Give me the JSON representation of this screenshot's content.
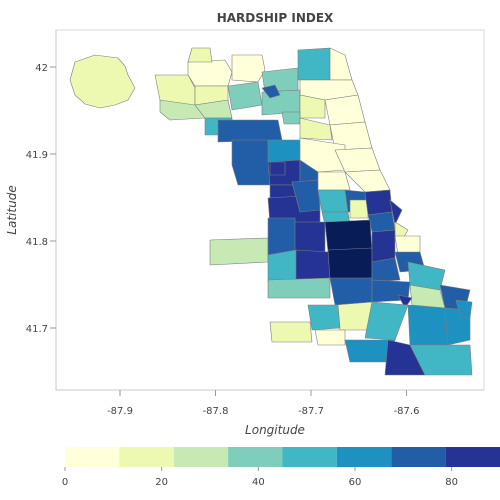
{
  "chart_data": {
    "type": "choropleth",
    "title": "HARDSHIP INDEX",
    "xlabel": "Longitude",
    "ylabel": "Latitude",
    "x_ticks": [
      -87.9,
      -87.8,
      -87.7,
      -87.6
    ],
    "y_ticks": [
      41.7,
      41.8,
      41.9,
      42
    ],
    "color_scale": {
      "ticks": [
        0,
        20,
        40,
        60,
        80
      ],
      "range": [
        0,
        90
      ],
      "bins": 8,
      "colors": [
        "#ffffd9",
        "#edf8b1",
        "#c7e9b4",
        "#7fcdbb",
        "#41b6c4",
        "#1d91c0",
        "#225ea8",
        "#253494",
        "#081d58"
      ]
    }
  }
}
